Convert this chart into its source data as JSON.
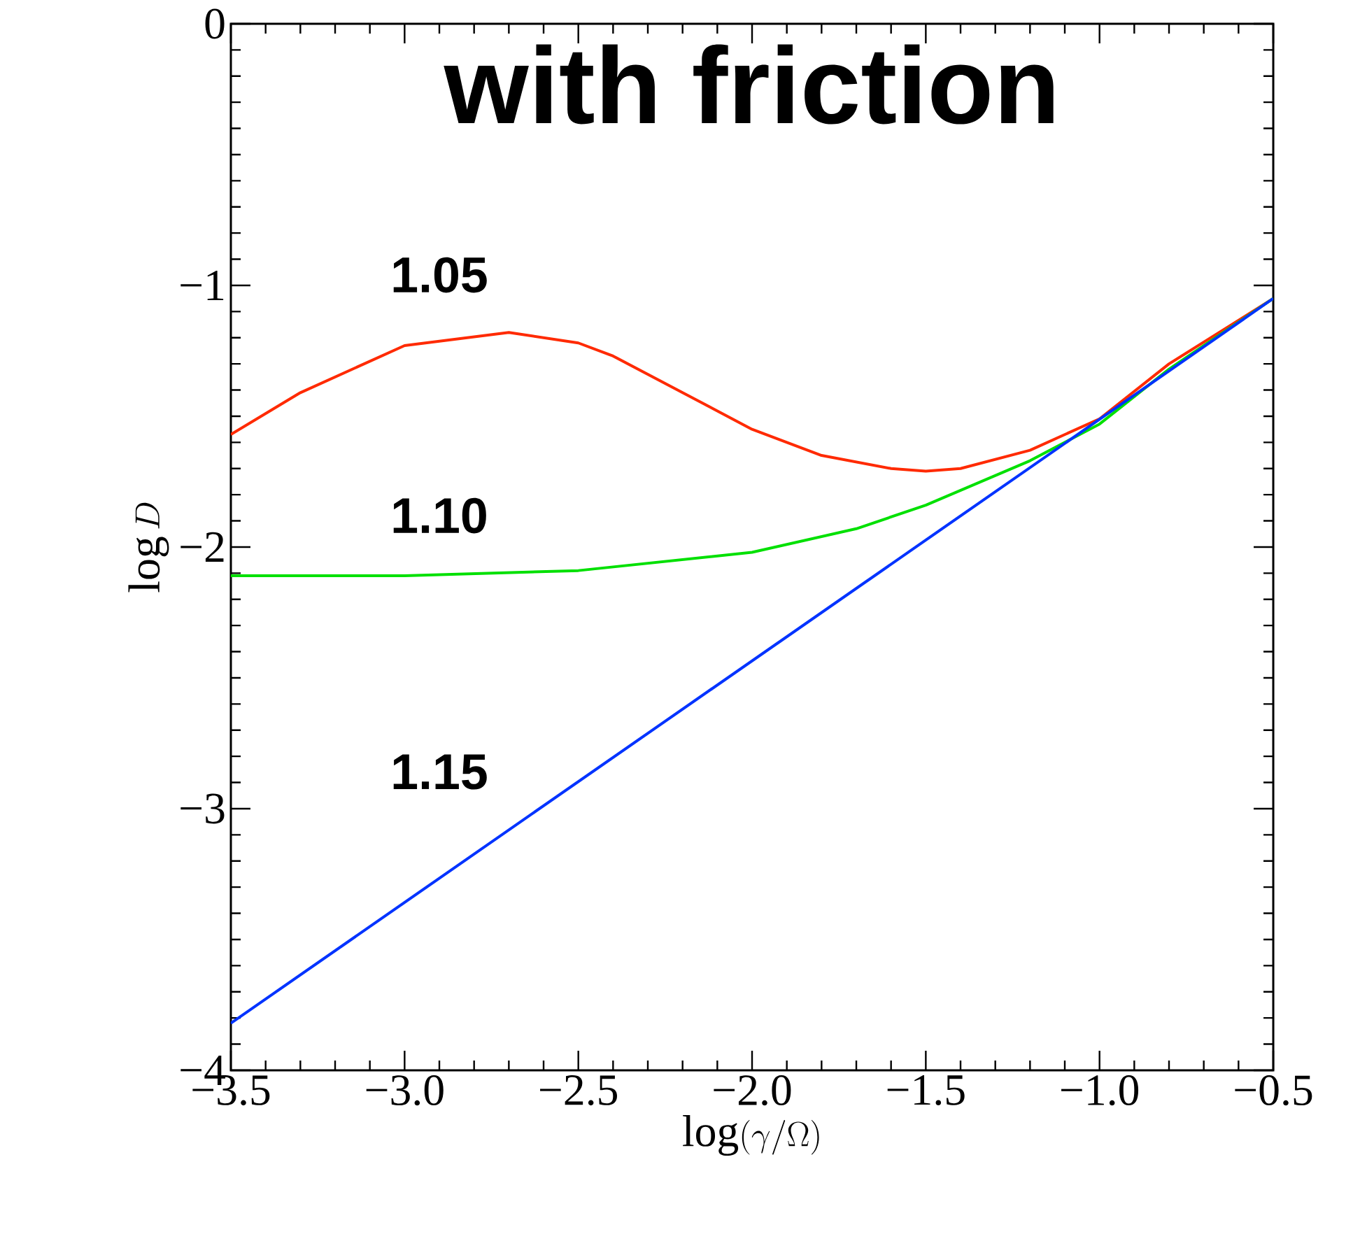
{
  "chart_data": {
    "type": "line",
    "title": "with friction",
    "xlabel": "\\log(\\gamma/\\Omega)",
    "ylabel": "\\log D",
    "xlim": [
      -3.5,
      -0.5
    ],
    "ylim": [
      -4,
      0
    ],
    "xticks": [
      {
        "value": -3.5,
        "label": "−3.5"
      },
      {
        "value": -3.0,
        "label": "−3.0"
      },
      {
        "value": -2.5,
        "label": "−2.5"
      },
      {
        "value": -2.0,
        "label": "−2.0"
      },
      {
        "value": -1.5,
        "label": "−1.5"
      },
      {
        "value": -1.0,
        "label": "−1.0"
      },
      {
        "value": -0.5,
        "label": "−0.5"
      }
    ],
    "yticks": [
      {
        "value": -4,
        "label": "−4"
      },
      {
        "value": -3,
        "label": "−3"
      },
      {
        "value": -2,
        "label": "−2"
      },
      {
        "value": -1,
        "label": "−1"
      },
      {
        "value": 0,
        "label": "0"
      }
    ],
    "grid": false,
    "marker": "none",
    "line_style": "solid",
    "series": [
      {
        "color": "#ff2a00",
        "x": [
          -3.5,
          -3.3,
          -3.0,
          -2.7,
          -2.5,
          -2.4,
          -2.2,
          -2.0,
          -1.8,
          -1.6,
          -1.5,
          -1.4,
          -1.2,
          -1.0,
          -0.8,
          -0.5
        ],
        "values": [
          -1.57,
          -1.41,
          -1.23,
          -1.18,
          -1.22,
          -1.27,
          -1.41,
          -1.55,
          -1.65,
          -1.7,
          -1.71,
          -1.7,
          -1.63,
          -1.51,
          -1.3,
          -1.05
        ]
      },
      {
        "color": "#00e000",
        "x": [
          -3.5,
          -3.0,
          -2.5,
          -2.0,
          -1.7,
          -1.5,
          -1.2,
          -1.0,
          -0.8,
          -0.5
        ],
        "values": [
          -2.11,
          -2.11,
          -2.09,
          -2.02,
          -1.93,
          -1.84,
          -1.67,
          -1.53,
          -1.32,
          -1.05
        ]
      },
      {
        "color": "#0033ff",
        "x": [
          -3.5,
          -0.5
        ],
        "values": [
          -3.82,
          -1.05
        ]
      }
    ],
    "annotations": [
      "1.05",
      "1.10",
      "1.15"
    ]
  }
}
